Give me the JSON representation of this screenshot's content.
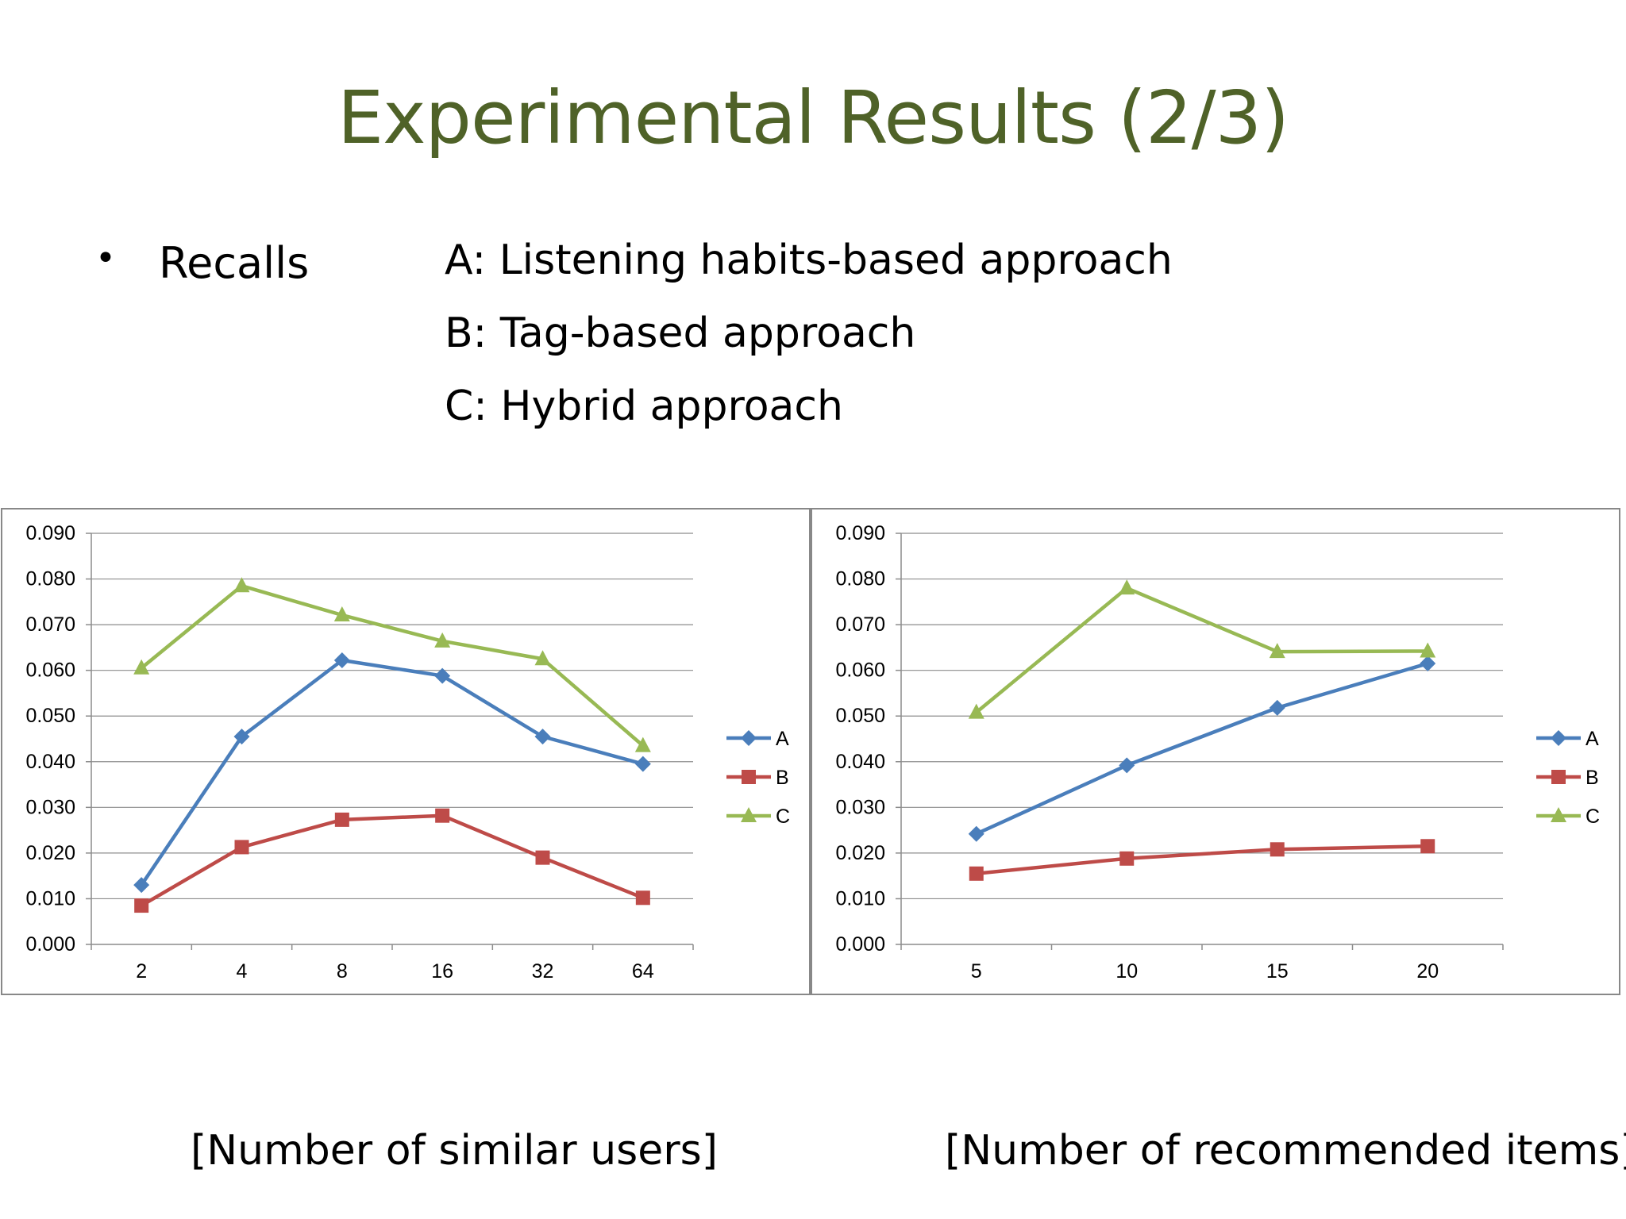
{
  "slide": {
    "title": "Experimental Results (2/3)",
    "bullet": "Recalls",
    "legend_lines": [
      "A: Listening habits-based approach",
      "B: Tag-based approach",
      "C: Hybrid approach"
    ],
    "captions": [
      "[Number of similar users]",
      "[Number of recommended items]"
    ]
  },
  "colors": {
    "title": "#4f6228",
    "A": "#4a7ebb",
    "B": "#be4b48",
    "C": "#98b954"
  },
  "chart_data": [
    {
      "type": "line",
      "categories": [
        "2",
        "4",
        "8",
        "16",
        "32",
        "64"
      ],
      "series": [
        {
          "name": "A",
          "values": [
            0.013,
            0.0455,
            0.0622,
            0.0588,
            0.0455,
            0.0395
          ]
        },
        {
          "name": "B",
          "values": [
            0.0085,
            0.0213,
            0.0273,
            0.0282,
            0.019,
            0.0102
          ]
        },
        {
          "name": "C",
          "values": [
            0.0605,
            0.0785,
            0.0721,
            0.0664,
            0.0625,
            0.0435
          ]
        }
      ],
      "ylim": [
        0,
        0.09
      ],
      "yticks": [
        "0.000",
        "0.010",
        "0.020",
        "0.030",
        "0.040",
        "0.050",
        "0.060",
        "0.070",
        "0.080",
        "0.090"
      ],
      "grid": true,
      "legend": "right"
    },
    {
      "type": "line",
      "categories": [
        "5",
        "10",
        "15",
        "20"
      ],
      "series": [
        {
          "name": "A",
          "values": [
            0.0242,
            0.0392,
            0.0518,
            0.0615
          ]
        },
        {
          "name": "B",
          "values": [
            0.0155,
            0.0188,
            0.0208,
            0.0215
          ]
        },
        {
          "name": "C",
          "values": [
            0.0508,
            0.078,
            0.0641,
            0.0642
          ]
        }
      ],
      "ylim": [
        0,
        0.09
      ],
      "yticks": [
        "0.000",
        "0.010",
        "0.020",
        "0.030",
        "0.040",
        "0.050",
        "0.060",
        "0.070",
        "0.080",
        "0.090"
      ],
      "grid": true,
      "legend": "right"
    }
  ]
}
